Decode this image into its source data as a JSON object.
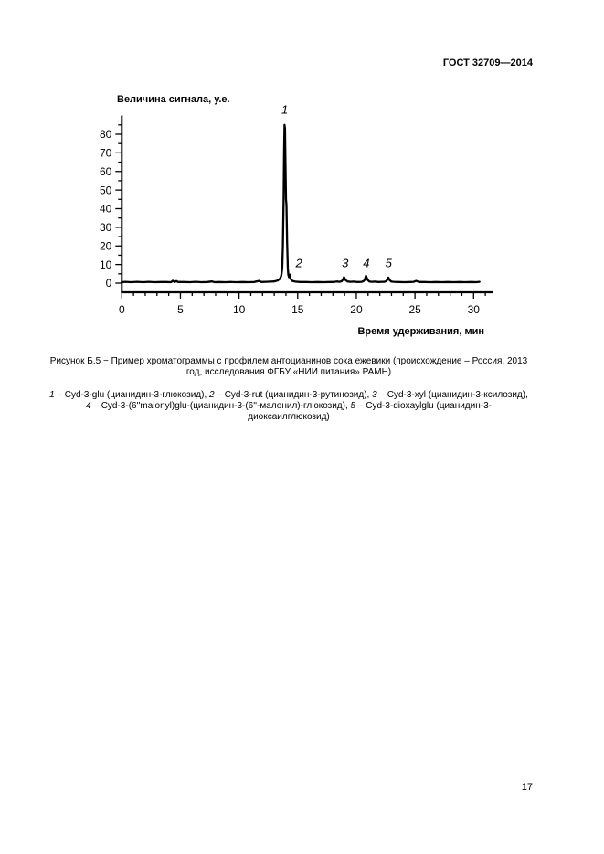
{
  "page": {
    "header": "ГОСТ 32709—2014",
    "page_number": "17"
  },
  "caption": {
    "lines": [
      "Рисунок Б.5 − Пример хроматограммы с профилем антоцианинов сока ежевики (происхождение – Россия, 2013",
      "год, исследования ФГБУ «НИИ питания» РАМН)"
    ]
  },
  "legend": {
    "lines": [
      "1 – Cyd-3-glu (цианидин-3-глюкозид), 2 – Cyd-3-rut (цианидин-3-рутинозид), 3 – Cyd-3-xyl (цианидин-3-ксилозид),",
      "4 – Cyd-3-(6''malonyl)glu-(цианидин-3-(6''-малонил)-глюкозид), 5 – Cyd-3-dioxaylglu (цианидин-3-",
      "диоксаилглюкозид)"
    ]
  },
  "chart_data": {
    "type": "line",
    "title": "",
    "xlabel": "Время удерживания, мин",
    "ylabel": "Величина сигнала, у.е.",
    "xlim": [
      0,
      32
    ],
    "ylim": [
      -5,
      90
    ],
    "x_major_ticks": [
      0,
      5,
      10,
      15,
      20,
      25,
      30
    ],
    "y_major_ticks": [
      0,
      10,
      20,
      30,
      40,
      50,
      60,
      70,
      80
    ],
    "grid": false,
    "legend_position": "none",
    "line_color": "#000000",
    "peak_labels": [
      {
        "text": "1",
        "x": 13.9,
        "y": 91
      },
      {
        "text": "2",
        "x": 15.1,
        "y": 8.5
      },
      {
        "text": "3",
        "x": 19.05,
        "y": 8.5
      },
      {
        "text": "4",
        "x": 20.85,
        "y": 8.5
      },
      {
        "text": "5",
        "x": 22.75,
        "y": 8.5
      }
    ],
    "peaks": [
      {
        "label": "1",
        "retention_time_min": 13.9,
        "height_au": 85
      },
      {
        "label": "2",
        "retention_time_min": 14.3,
        "height_au": 4.6
      },
      {
        "label": "3",
        "retention_time_min": 18.95,
        "height_au": 3.2
      },
      {
        "label": "4",
        "retention_time_min": 20.82,
        "height_au": 4.0
      },
      {
        "label": "5",
        "retention_time_min": 22.73,
        "height_au": 3.0
      }
    ],
    "trace": [
      [
        0,
        0.5
      ],
      [
        0.3,
        0.7
      ],
      [
        0.8,
        0.5
      ],
      [
        1.3,
        0.7
      ],
      [
        1.8,
        0.5
      ],
      [
        2.3,
        0.7
      ],
      [
        2.8,
        0.5
      ],
      [
        3.3,
        0.6
      ],
      [
        3.8,
        0.6
      ],
      [
        4.2,
        0.5
      ],
      [
        4.35,
        1.3
      ],
      [
        4.5,
        0.6
      ],
      [
        4.65,
        1.1
      ],
      [
        4.8,
        0.6
      ],
      [
        5.3,
        0.6
      ],
      [
        5.8,
        0.5
      ],
      [
        6.3,
        0.7
      ],
      [
        6.8,
        0.5
      ],
      [
        7.3,
        0.6
      ],
      [
        7.7,
        0.9
      ],
      [
        7.9,
        0.5
      ],
      [
        8.3,
        0.6
      ],
      [
        8.8,
        0.5
      ],
      [
        9.3,
        0.6
      ],
      [
        9.8,
        0.5
      ],
      [
        10.3,
        0.6
      ],
      [
        10.8,
        0.5
      ],
      [
        11.3,
        0.6
      ],
      [
        11.7,
        1.2
      ],
      [
        11.9,
        0.6
      ],
      [
        12.3,
        0.7
      ],
      [
        12.7,
        0.8
      ],
      [
        13.0,
        0.9
      ],
      [
        13.3,
        1.4
      ],
      [
        13.5,
        2.4
      ],
      [
        13.6,
        4
      ],
      [
        13.68,
        8
      ],
      [
        13.74,
        20
      ],
      [
        13.8,
        45
      ],
      [
        13.84,
        70
      ],
      [
        13.88,
        85
      ],
      [
        13.92,
        83
      ],
      [
        13.96,
        65
      ],
      [
        14.0,
        45
      ],
      [
        14.04,
        42
      ],
      [
        14.1,
        22
      ],
      [
        14.16,
        8
      ],
      [
        14.2,
        4.5
      ],
      [
        14.26,
        3.2
      ],
      [
        14.33,
        4.6
      ],
      [
        14.4,
        2.2
      ],
      [
        14.55,
        1.2
      ],
      [
        14.8,
        0.8
      ],
      [
        15.2,
        0.6
      ],
      [
        15.7,
        0.6
      ],
      [
        16.2,
        0.5
      ],
      [
        16.7,
        0.6
      ],
      [
        17.2,
        0.5
      ],
      [
        17.7,
        0.6
      ],
      [
        18.1,
        0.6
      ],
      [
        18.35,
        0.9
      ],
      [
        18.55,
        0.7
      ],
      [
        18.75,
        1.0
      ],
      [
        18.85,
        1.8
      ],
      [
        18.95,
        3.2
      ],
      [
        19.08,
        1.6
      ],
      [
        19.25,
        0.9
      ],
      [
        19.5,
        0.7
      ],
      [
        19.75,
        0.8
      ],
      [
        20.1,
        0.6
      ],
      [
        20.45,
        0.7
      ],
      [
        20.6,
        1.0
      ],
      [
        20.72,
        1.8
      ],
      [
        20.82,
        4.0
      ],
      [
        20.95,
        1.8
      ],
      [
        21.1,
        0.9
      ],
      [
        21.3,
        0.7
      ],
      [
        21.6,
        0.8
      ],
      [
        21.9,
        0.6
      ],
      [
        22.2,
        0.7
      ],
      [
        22.4,
        0.7
      ],
      [
        22.55,
        1.1
      ],
      [
        22.65,
        1.8
      ],
      [
        22.73,
        3.0
      ],
      [
        22.85,
        1.5
      ],
      [
        23.0,
        0.8
      ],
      [
        23.2,
        0.7
      ],
      [
        23.6,
        0.6
      ],
      [
        24.1,
        0.5
      ],
      [
        24.6,
        0.6
      ],
      [
        24.9,
        0.7
      ],
      [
        25.1,
        1.2
      ],
      [
        25.35,
        0.6
      ],
      [
        25.8,
        0.6
      ],
      [
        26.3,
        0.5
      ],
      [
        26.8,
        0.6
      ],
      [
        27.3,
        0.5
      ],
      [
        27.8,
        0.6
      ],
      [
        28.3,
        0.5
      ],
      [
        28.8,
        0.6
      ],
      [
        29.3,
        0.5
      ],
      [
        29.8,
        0.6
      ],
      [
        30.2,
        0.5
      ],
      [
        30.5,
        0.7
      ]
    ]
  }
}
